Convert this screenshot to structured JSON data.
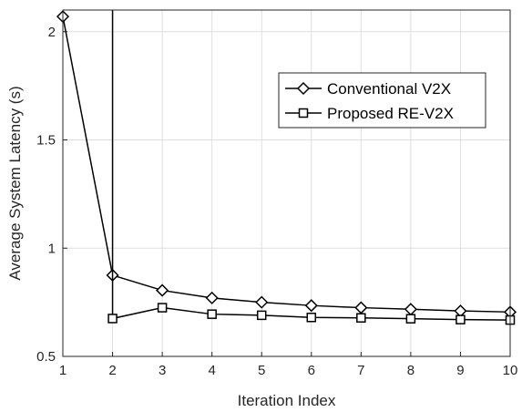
{
  "chart_data": {
    "type": "line",
    "title": "",
    "xlabel": "Iteration Index",
    "ylabel": "Average System Latency (s)",
    "xlim": [
      1,
      10
    ],
    "ylim": [
      0.5,
      2.1
    ],
    "xticks": [
      1,
      2,
      3,
      4,
      5,
      6,
      7,
      8,
      9,
      10
    ],
    "yticks": [
      0.5,
      1,
      1.5,
      2
    ],
    "ytick_labels": [
      "0.5",
      "1",
      "1.5",
      "2"
    ],
    "grid": true,
    "legend_position": "top-right",
    "x": [
      1,
      2,
      3,
      4,
      5,
      6,
      7,
      8,
      9,
      10
    ],
    "series": [
      {
        "name": "Conventional V2X",
        "marker": "diamond",
        "color": "#000000",
        "values": [
          2.07,
          0.875,
          0.805,
          0.77,
          0.75,
          0.735,
          0.725,
          0.718,
          0.71,
          0.705
        ]
      },
      {
        "name": "Proposed RE-V2X",
        "marker": "square",
        "color": "#000000",
        "values": [
          null,
          0.675,
          0.725,
          0.695,
          0.69,
          0.68,
          0.678,
          0.674,
          0.67,
          0.668
        ],
        "note_off_scale_at_x1": true
      }
    ]
  }
}
